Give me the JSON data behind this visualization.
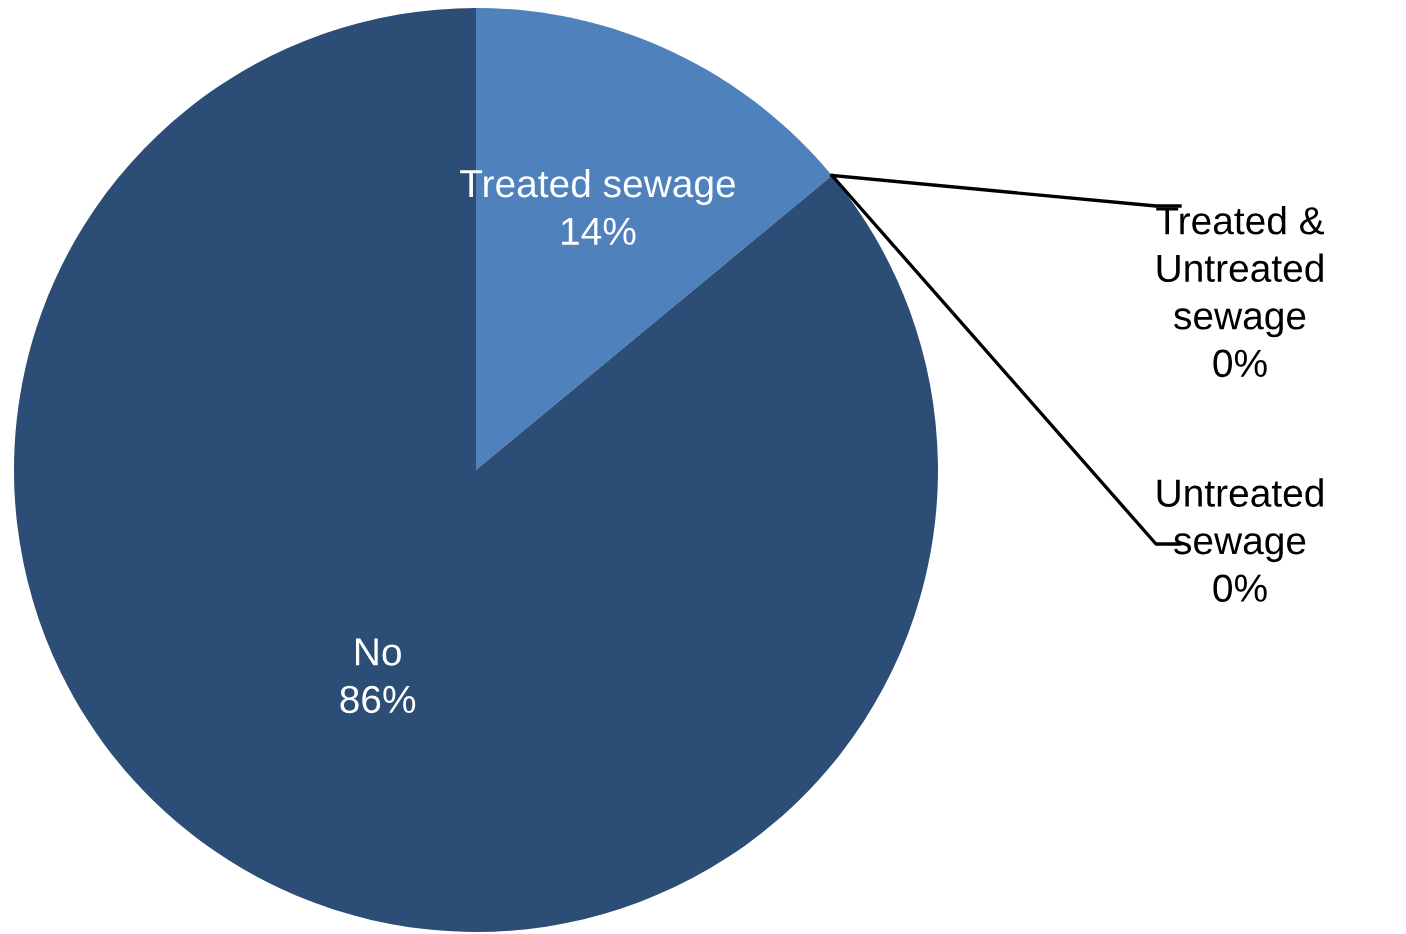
{
  "chart_data": {
    "type": "pie",
    "categories": [
      "Treated sewage",
      "Treated & Untreated sewage",
      "Untreated sewage",
      "No"
    ],
    "values": [
      14,
      0,
      0,
      86
    ],
    "colors": [
      "#4f81bd",
      "#3f6ea3",
      "#35608f",
      "#2c4d75"
    ],
    "value_labels": [
      "14%",
      "0%",
      "0%",
      "86%"
    ],
    "legend": false
  }
}
